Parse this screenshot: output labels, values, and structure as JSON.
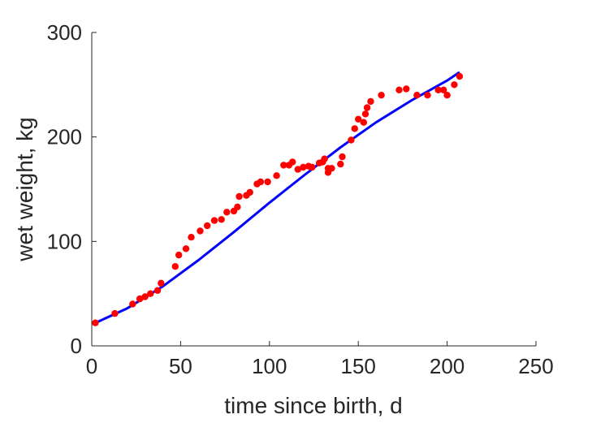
{
  "chart_data": {
    "type": "scatter",
    "xlabel": "time since birth, d",
    "ylabel": "wet weight, kg",
    "xlim": [
      0,
      250
    ],
    "ylim": [
      0,
      300
    ],
    "x_ticks": [
      "0",
      "50",
      "100",
      "150",
      "200",
      "250"
    ],
    "y_ticks": [
      "0",
      "100",
      "200",
      "300"
    ],
    "grid": false,
    "legend": "none",
    "series": [
      {
        "kind": "points",
        "color": "#ff0000",
        "points": [
          [
            2,
            22
          ],
          [
            13,
            31
          ],
          [
            23,
            40
          ],
          [
            27,
            45
          ],
          [
            30,
            47
          ],
          [
            33,
            50
          ],
          [
            37,
            53
          ],
          [
            39,
            60
          ],
          [
            47,
            76
          ],
          [
            49,
            87
          ],
          [
            53,
            93
          ],
          [
            56,
            104
          ],
          [
            61,
            110
          ],
          [
            65,
            115
          ],
          [
            69,
            120
          ],
          [
            73,
            121
          ],
          [
            76,
            128
          ],
          [
            80,
            129
          ],
          [
            82,
            133
          ],
          [
            83,
            143
          ],
          [
            87,
            144
          ],
          [
            89,
            147
          ],
          [
            93,
            155
          ],
          [
            95,
            157
          ],
          [
            99,
            157
          ],
          [
            104,
            163
          ],
          [
            108,
            173
          ],
          [
            111,
            173
          ],
          [
            113,
            176
          ],
          [
            116,
            169
          ],
          [
            119,
            171
          ],
          [
            122,
            172
          ],
          [
            124,
            171
          ],
          [
            128,
            175
          ],
          [
            130,
            176
          ],
          [
            131,
            179
          ],
          [
            133,
            166
          ],
          [
            133,
            170
          ],
          [
            135,
            170
          ],
          [
            140,
            174
          ],
          [
            141,
            181
          ],
          [
            146,
            197
          ],
          [
            148,
            208
          ],
          [
            150,
            217
          ],
          [
            153,
            214
          ],
          [
            154,
            222
          ],
          [
            155,
            228
          ],
          [
            157,
            234
          ],
          [
            163,
            240
          ],
          [
            173,
            245
          ],
          [
            177,
            246
          ],
          [
            183,
            240
          ],
          [
            189,
            240
          ],
          [
            195,
            245
          ],
          [
            198,
            245
          ],
          [
            200,
            240
          ],
          [
            204,
            250
          ],
          [
            207,
            258
          ]
        ]
      },
      {
        "kind": "line",
        "color": "#0000ff",
        "points": [
          [
            2,
            22
          ],
          [
            20,
            36
          ],
          [
            40,
            57
          ],
          [
            60,
            82
          ],
          [
            80,
            109
          ],
          [
            100,
            137
          ],
          [
            120,
            164
          ],
          [
            140,
            190
          ],
          [
            160,
            214
          ],
          [
            180,
            235
          ],
          [
            200,
            254
          ],
          [
            207,
            262
          ]
        ]
      }
    ]
  }
}
